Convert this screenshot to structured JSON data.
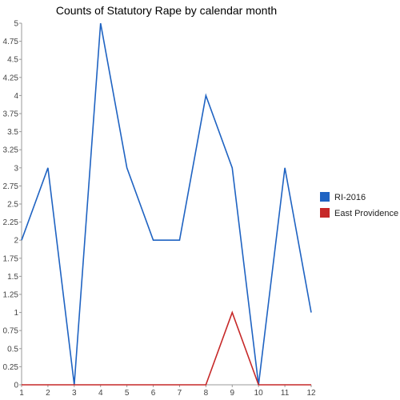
{
  "chart_data": {
    "type": "line",
    "title": "Counts of Statutory Rape by calendar month",
    "xlabel": "",
    "ylabel": "",
    "x": [
      1,
      2,
      3,
      4,
      5,
      6,
      7,
      8,
      9,
      10,
      11,
      12
    ],
    "x_tick_labels": [
      "1",
      "2",
      "3",
      "4",
      "5",
      "6",
      "7",
      "8",
      "9",
      "10",
      "11",
      "12"
    ],
    "y_tick_labels": [
      "0",
      "0.25",
      "0.5",
      "0.75",
      "1",
      "1.25",
      "1.5",
      "1.75",
      "2",
      "2.25",
      "2.5",
      "2.75",
      "3",
      "3.25",
      "3.5",
      "3.75",
      "4",
      "4.25",
      "4.5",
      "4.75",
      "5"
    ],
    "y_ticks": [
      0,
      0.25,
      0.5,
      0.75,
      1,
      1.25,
      1.5,
      1.75,
      2,
      2.25,
      2.5,
      2.75,
      3,
      3.25,
      3.5,
      3.75,
      4,
      4.25,
      4.5,
      4.75,
      5
    ],
    "xlim": [
      1,
      12
    ],
    "ylim": [
      0,
      5
    ],
    "grid": false,
    "legend_position": "right",
    "series": [
      {
        "name": "RI-2016",
        "color": "#1f63c2",
        "values": [
          2,
          3,
          0,
          5,
          3,
          2,
          2,
          4,
          3,
          0,
          3,
          1
        ]
      },
      {
        "name": "East Providence",
        "color": "#c62828",
        "values": [
          0,
          0,
          0,
          0,
          0,
          0,
          0,
          0,
          1,
          0,
          0,
          0
        ]
      }
    ]
  }
}
